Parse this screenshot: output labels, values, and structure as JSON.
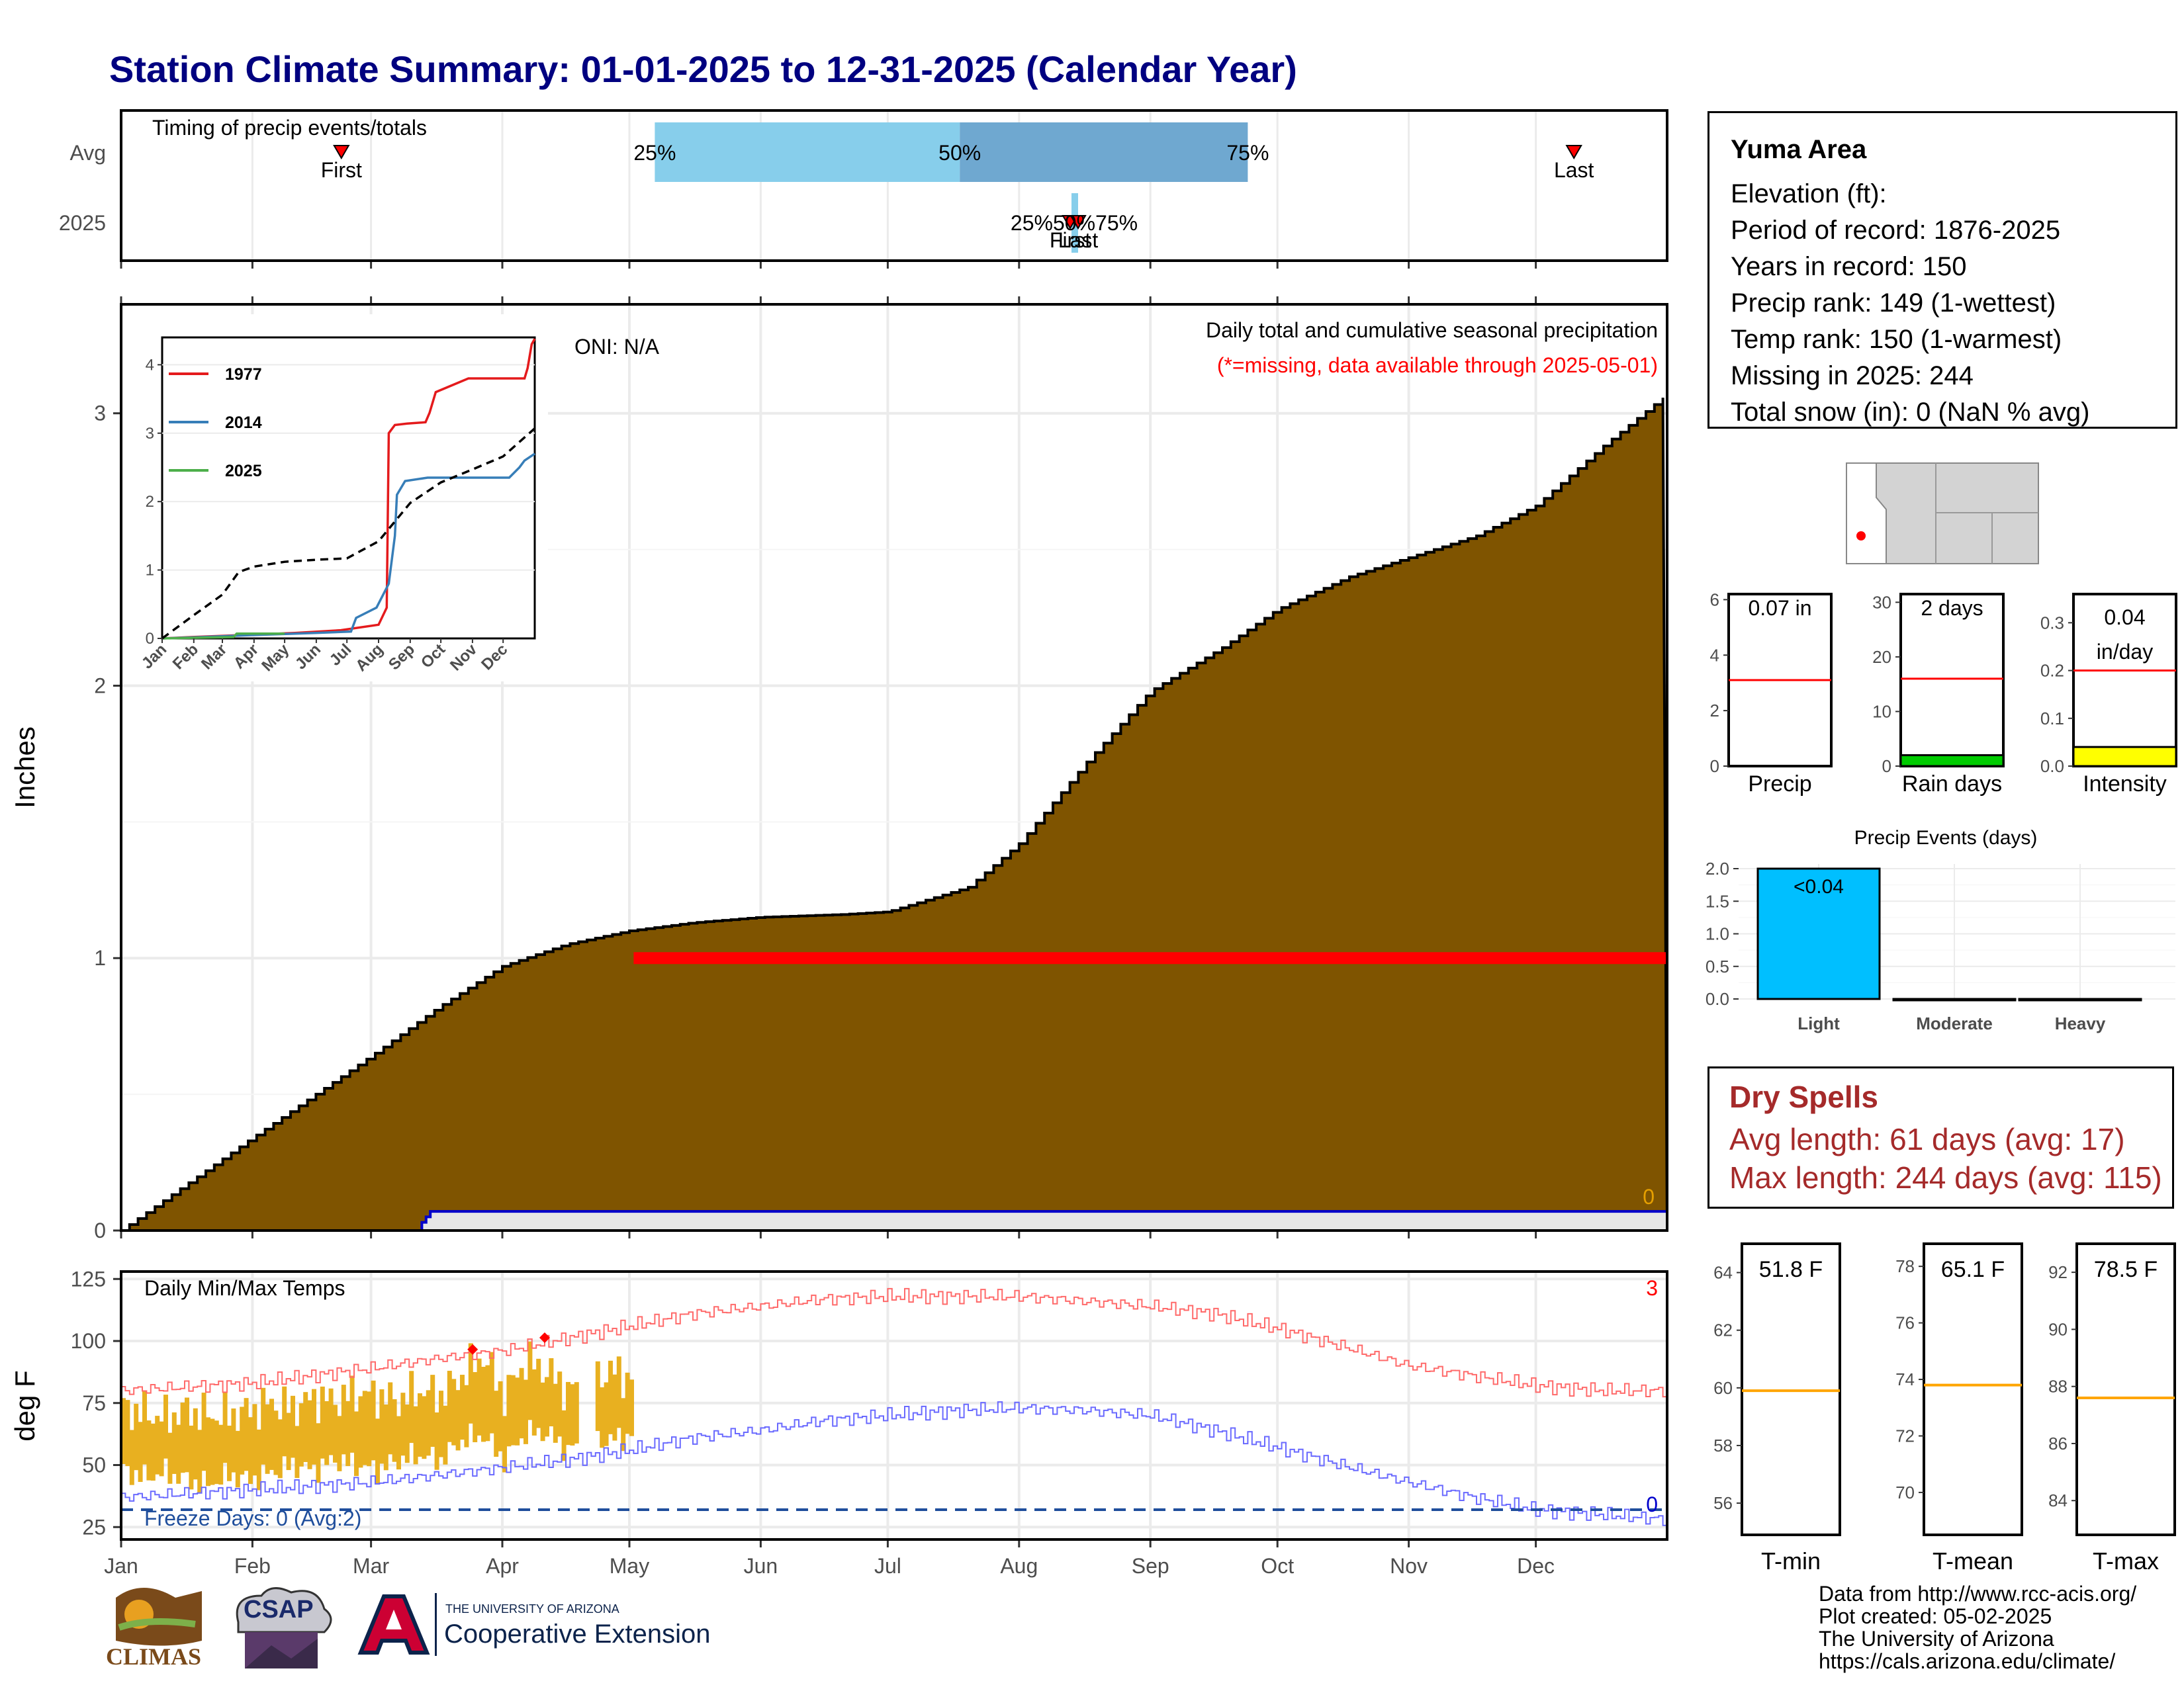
{
  "title": "Station Climate Summary: 01-01-2025 to 12-31-2025 (Calendar Year)",
  "timing_panel": {
    "label": "Timing of precip events/totals",
    "rows": [
      "Avg",
      "2025"
    ],
    "first_label": "First",
    "last_label": "Last",
    "pct_labels": [
      "25%",
      "50%",
      "75%"
    ],
    "avg_first_doy": 52,
    "avg_last_doy": 343,
    "avg_p25_doy": 126,
    "avg_p50_doy": 198,
    "avg_p75_doy": 266,
    "y2025_doy": 225,
    "y2025_overlap_text": "25%50%75%"
  },
  "main_panel": {
    "ylabel": "Inches",
    "legend_title": "Daily total and cumulative seasonal precipitation",
    "legend_note": "(*=missing, data available through 2025-05-01)",
    "oni": "ONI: N/A",
    "zero_label": "0",
    "yticks": [
      "0",
      "1",
      "2",
      "3"
    ]
  },
  "inset": {
    "yticks": [
      "0",
      "1",
      "2",
      "3",
      "4"
    ],
    "xticks": [
      "Jan",
      "Feb",
      "Mar",
      "Apr",
      "May",
      "Jun",
      "Jul",
      "Aug",
      "Sep",
      "Oct",
      "Nov",
      "Dec"
    ],
    "legend": [
      "1977",
      "2014",
      "2025"
    ]
  },
  "temp_panel": {
    "ylabel": "deg F",
    "label": "Daily Min/Max Temps",
    "freeze": "Freeze Days: 0 (Avg:2)",
    "count_hot": "3",
    "count_cold": "0",
    "yticks": [
      "25",
      "50",
      "75",
      "100",
      "125"
    ],
    "xticks": [
      "Jan",
      "Feb",
      "Mar",
      "Apr",
      "May",
      "Jun",
      "Jul",
      "Aug",
      "Sep",
      "Oct",
      "Nov",
      "Dec"
    ]
  },
  "station": {
    "name": "Yuma Area",
    "elevation": "Elevation (ft):",
    "period": "Period of record: 1876-2025",
    "years": "Years in record: 150",
    "precip_rank": "Precip rank: 149 (1-wettest)",
    "temp_rank": "Temp rank: 150 (1-warmest)",
    "missing": "Missing in 2025: 244",
    "snow": "Total snow (in): 0 (NaN % avg)"
  },
  "mini_bars": {
    "precip": {
      "label": "Precip",
      "value_text": "0.07 in",
      "yticks": [
        "0",
        "2",
        "4",
        "6"
      ]
    },
    "rain_days": {
      "label": "Rain days",
      "value_text": "2 days",
      "yticks": [
        "0",
        "10",
        "20",
        "30"
      ]
    },
    "intensity": {
      "label": "Intensity",
      "value_text": "0.04",
      "value_text2": "in/day",
      "yticks": [
        "0.0",
        "0.1",
        "0.2",
        "0.3"
      ]
    }
  },
  "precip_events": {
    "title": "Precip Events (days)",
    "yticks": [
      "0.0",
      "0.5",
      "1.0",
      "1.5",
      "2.0"
    ],
    "bar_label": "<0.04"
  },
  "dry_spells": {
    "title": "Dry Spells",
    "avg": "Avg length: 61 days (avg: 17)",
    "max": "Max length: 244 days (avg: 115)"
  },
  "temp_bars": {
    "tmin": {
      "label": "T-min",
      "value_text": "51.8 F",
      "yticks": [
        "56",
        "58",
        "60",
        "62",
        "64"
      ]
    },
    "tmean": {
      "label": "T-mean",
      "value_text": "65.1 F",
      "yticks": [
        "70",
        "72",
        "74",
        "76",
        "78"
      ]
    },
    "tmax": {
      "label": "T-max",
      "value_text": "78.5 F",
      "yticks": [
        "84",
        "86",
        "88",
        "90",
        "92"
      ]
    }
  },
  "credits": {
    "line1": "Data from http://www.rcc-acis.org/",
    "line2": "Plot created: 05-02-2025",
    "line3": "The University of Arizona",
    "line4": "https://cals.arizona.edu/climate/"
  },
  "logos": {
    "climas": "CLIMAS",
    "csap": "CSAP",
    "ua_line1": "THE UNIVERSITY OF ARIZONA",
    "ua_line2": "Cooperative Extension"
  },
  "colors": {
    "title": "#000080",
    "cumulative_fill": "#7f5400",
    "missing": "#ff0000",
    "dry_spells": "#a52a2a",
    "temp_bars": "#e8b020",
    "tmax_clim": "#ff6a6a",
    "tmin_clim": "#6a6aff",
    "light_bar": "#00bfff",
    "rain_days_bar": "#00cc00",
    "intensity_bar": "#ffff00"
  },
  "chart_data": [
    {
      "type": "area",
      "title": "Daily total and cumulative seasonal precipitation",
      "ylabel": "Inches",
      "xlabel": "",
      "ylim": [
        0,
        3.4
      ],
      "xlim_doy": [
        0,
        365
      ],
      "series": [
        {
          "name": "climatology",
          "x_doy": [
            0,
            31,
            59,
            75,
            90,
            105,
            120,
            135,
            151,
            170,
            181,
            200,
            212,
            228,
            243,
            260,
            273,
            290,
            304,
            320,
            334,
            350,
            365
          ],
          "y": [
            0,
            0.34,
            0.64,
            0.82,
            0.97,
            1.05,
            1.1,
            1.13,
            1.15,
            1.16,
            1.17,
            1.26,
            1.42,
            1.72,
            1.98,
            2.14,
            2.28,
            2.4,
            2.47,
            2.55,
            2.66,
            2.88,
            3.07
          ]
        },
        {
          "name": "2025",
          "x_doy": [
            70,
            71,
            72,
            73,
            365
          ],
          "y": [
            0,
            0.03,
            0.05,
            0.07,
            0.07
          ]
        }
      ],
      "missing_from_doy": 121,
      "missing_marker_y": 1.0
    },
    {
      "type": "line",
      "ylim": [
        0,
        4.4
      ],
      "series": [
        {
          "name": "1977",
          "x_doy": [
            0,
            30,
            80,
            130,
            175,
            212,
            220,
            222,
            228,
            240,
            258,
            262,
            268,
            300,
            340,
            355,
            358,
            362,
            365
          ],
          "y": [
            0,
            0.02,
            0.05,
            0.08,
            0.12,
            0.2,
            0.45,
            3.0,
            3.12,
            3.14,
            3.16,
            3.3,
            3.6,
            3.8,
            3.8,
            3.8,
            3.95,
            4.3,
            4.38
          ]
        },
        {
          "name": "2014",
          "x_doy": [
            0,
            40,
            90,
            150,
            185,
            190,
            210,
            222,
            228,
            230,
            238,
            260,
            300,
            340,
            350,
            355,
            365
          ],
          "y": [
            0,
            0.02,
            0.05,
            0.08,
            0.1,
            0.3,
            0.45,
            0.8,
            1.5,
            2.1,
            2.3,
            2.35,
            2.35,
            2.35,
            2.5,
            2.6,
            2.7
          ]
        },
        {
          "name": "2025",
          "x_doy": [
            0,
            70,
            73,
            120
          ],
          "y": [
            0,
            0.02,
            0.07,
            0.07
          ]
        },
        {
          "name": "climatology",
          "x_doy": [
            0,
            31,
            59,
            75,
            90,
            120,
            151,
            181,
            212,
            243,
            273,
            304,
            334,
            365
          ],
          "y": [
            0,
            0.34,
            0.64,
            0.97,
            1.05,
            1.12,
            1.15,
            1.17,
            1.42,
            1.98,
            2.28,
            2.47,
            2.66,
            3.07
          ]
        }
      ]
    },
    {
      "type": "line",
      "title": "Daily Min/Max Temps",
      "ylabel": "deg F",
      "ylim": [
        20,
        128
      ],
      "tmax_clim": {
        "x_doy": [
          0,
          31,
          59,
          75,
          90,
          105,
          120,
          135,
          151,
          166,
          181,
          197,
          212,
          228,
          243,
          258,
          273,
          288,
          304,
          319,
          334,
          350,
          365
        ],
        "y": [
          80,
          83,
          89,
          93,
          96,
          101,
          106,
          111,
          114,
          117,
          118,
          118,
          118,
          116,
          114,
          111,
          105,
          98,
          90,
          86,
          82,
          80,
          80
        ]
      },
      "tmin_clim": {
        "x_doy": [
          0,
          31,
          59,
          75,
          90,
          105,
          120,
          135,
          151,
          166,
          181,
          197,
          212,
          228,
          243,
          258,
          273,
          288,
          304,
          319,
          334,
          350,
          365
        ],
        "y": [
          37,
          40,
          43,
          46,
          49,
          52,
          56,
          61,
          64,
          68,
          70,
          72,
          73,
          72,
          70,
          64,
          57,
          50,
          43,
          37,
          32,
          30,
          28
        ]
      },
      "daily_2025": {
        "x_doy": [
          0,
          5,
          10,
          15,
          20,
          25,
          30,
          35,
          40,
          45,
          50,
          55,
          60,
          65,
          70,
          75,
          80,
          85,
          90,
          95,
          100,
          105,
          110,
          115,
          120
        ],
        "tmin": [
          48,
          45,
          47,
          44,
          42,
          46,
          44,
          47,
          50,
          48,
          52,
          50,
          48,
          52,
          54,
          52,
          60,
          62,
          52,
          63,
          63,
          56,
          60,
          60,
          62
        ],
        "tmax": [
          73,
          71,
          69,
          72,
          70,
          70,
          72,
          75,
          73,
          77,
          76,
          79,
          78,
          76,
          80,
          78,
          86,
          94,
          78,
          92,
          88,
          80,
          84,
          88,
          85
        ]
      },
      "record_hot_doy": [
        83,
        100
      ],
      "freeze_threshold": 32
    },
    {
      "type": "bar",
      "title": "Precip Events (days)",
      "categories": [
        "Light",
        "Moderate",
        "Heavy"
      ],
      "values": [
        2,
        0,
        0
      ],
      "ylim": [
        0,
        2.0
      ]
    },
    {
      "type": "bar",
      "categories": [
        "Precip",
        "Rain days",
        "Intensity"
      ],
      "values": [
        0.07,
        2,
        0.04
      ],
      "averages": [
        3.1,
        16,
        0.2
      ],
      "ylims": [
        [
          0,
          6.2
        ],
        [
          0,
          31.5
        ],
        [
          0,
          0.36
        ]
      ]
    },
    {
      "type": "bar",
      "categories": [
        "T-min",
        "T-mean",
        "T-max"
      ],
      "values": [
        51.8,
        65.1,
        78.5
      ],
      "averages": [
        59.9,
        73.8,
        87.6
      ],
      "ylims": [
        [
          54.9,
          65
        ],
        [
          68.5,
          78.8
        ],
        [
          82.8,
          93
        ]
      ]
    }
  ]
}
